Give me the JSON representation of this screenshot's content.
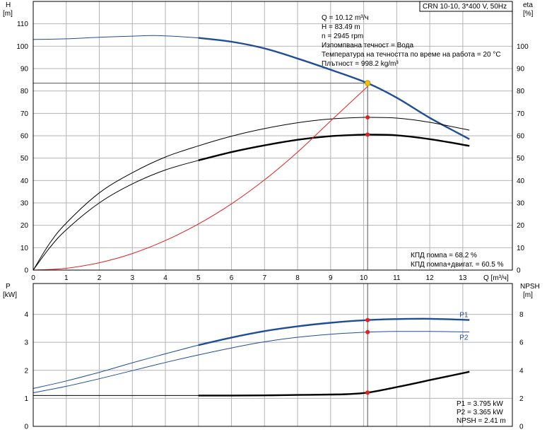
{
  "model_box": "CRN 10-10, 3*400 V, 50Hz",
  "top": {
    "left_axis": {
      "title": "H",
      "unit": "[m]",
      "ticks": [
        0,
        10,
        20,
        30,
        40,
        50,
        60,
        70,
        80,
        90,
        100,
        110
      ],
      "range": [
        0,
        120
      ]
    },
    "right_axis": {
      "title": "eta",
      "unit": "[%]",
      "ticks": [
        0,
        10,
        20,
        30,
        40,
        50,
        60,
        70,
        80,
        90,
        100
      ],
      "range": [
        0,
        120
      ]
    },
    "x_axis": {
      "unit": "Q [m³/ч]",
      "ticks": [
        0,
        1,
        2,
        3,
        4,
        5,
        6,
        7,
        8,
        9,
        10,
        11,
        12,
        13
      ],
      "range": [
        0,
        14.5
      ]
    },
    "info_lines": [
      "Q = 10.12 m³/ч",
      "H = 83.49 m",
      "n = 2945 rpm",
      "Изпомпвана течност = Вода",
      "Температура на течността по време на работа = 20 °C",
      "Плътност = 998.2 kg/m³"
    ],
    "eff_lines": [
      "КПД помпа = 68.2 %",
      "КПД помпа+двигат. = 60.5 %"
    ]
  },
  "bottom": {
    "left_axis": {
      "title": "P",
      "unit": "[kW]",
      "ticks": [
        0,
        1,
        2,
        3,
        4
      ],
      "range": [
        0,
        5.1
      ]
    },
    "right_axis": {
      "title": "NPSH",
      "unit": "[m]",
      "ticks": [
        0,
        2,
        4,
        6,
        8
      ],
      "range": [
        0,
        10.2
      ]
    },
    "result_lines": [
      "P1 = 3.795 kW",
      "P2 = 3.365 kW",
      "NPSH = 2.41 m"
    ]
  },
  "chart_data": {
    "type": "line",
    "duty_point": {
      "q": 10.12,
      "h": 83.49
    },
    "series": [
      {
        "id": "H",
        "axis": "top-left",
        "color": "#1f4e96",
        "x": [
          0,
          1,
          2,
          3,
          3.8,
          5,
          6,
          7,
          8,
          9,
          10.12,
          11,
          12,
          13.2
        ],
        "y": [
          103,
          103.3,
          104,
          104.5,
          104.7,
          103.7,
          102,
          99,
          94.5,
          89.5,
          83.49,
          77,
          68,
          58.5
        ],
        "bold_from": 5
      },
      {
        "id": "eta_pump",
        "axis": "top-right",
        "color": "#000000",
        "x": [
          0,
          0.5,
          1,
          2,
          3,
          4,
          5,
          6,
          7,
          8,
          9,
          10,
          10.2,
          11,
          12,
          13.2
        ],
        "y": [
          0,
          12,
          21,
          34.5,
          43.5,
          50.5,
          55.5,
          59.8,
          63.2,
          65.8,
          67.5,
          68.2,
          68.2,
          67.9,
          66,
          62.5
        ],
        "bold_from": 99
      },
      {
        "id": "eta_total",
        "axis": "top-right",
        "color": "#000000",
        "x": [
          0,
          0.5,
          1,
          2,
          3,
          4,
          5,
          6,
          7,
          8,
          9,
          10,
          10.2,
          11,
          12,
          13.2
        ],
        "y": [
          0,
          10,
          18,
          30,
          38.5,
          44.7,
          49,
          52.7,
          55.7,
          58.2,
          59.8,
          60.5,
          60.5,
          60.2,
          58.5,
          55.5
        ],
        "bold_from": 5
      },
      {
        "id": "system",
        "axis": "top-left",
        "color": "#e02020",
        "x": [
          0,
          1,
          2,
          3,
          4,
          5,
          6,
          7,
          8,
          9,
          10.12
        ],
        "y": [
          0,
          0.8,
          3.3,
          7.4,
          13.2,
          20.6,
          29.6,
          40.3,
          52.7,
          66.6,
          82
        ]
      },
      {
        "id": "P1",
        "axis": "bottom-left",
        "color": "#1f4e96",
        "label": "P1",
        "x": [
          0,
          1,
          2,
          3,
          4,
          5,
          6,
          7,
          8,
          9,
          10.12,
          11,
          12,
          13.2
        ],
        "y": [
          1.35,
          1.62,
          1.93,
          2.27,
          2.59,
          2.9,
          3.17,
          3.4,
          3.57,
          3.7,
          3.795,
          3.83,
          3.84,
          3.8
        ],
        "bold_from": 5
      },
      {
        "id": "P2",
        "axis": "bottom-left",
        "color": "#1f4e96",
        "label": "P2",
        "x": [
          0,
          1,
          2,
          3,
          4,
          5,
          6,
          7,
          8,
          9,
          10.12,
          11,
          12,
          13.2
        ],
        "y": [
          1.2,
          1.43,
          1.7,
          1.99,
          2.28,
          2.55,
          2.8,
          3.02,
          3.18,
          3.29,
          3.365,
          3.39,
          3.39,
          3.37
        ]
      },
      {
        "id": "NPSH",
        "axis": "bottom-right",
        "color": "#000000",
        "x": [
          0,
          5,
          6,
          7,
          8,
          9,
          9.5,
          10.12,
          11,
          12,
          13.2
        ],
        "y": [
          2.2,
          2.2,
          2.2,
          2.21,
          2.24,
          2.27,
          2.3,
          2.41,
          2.8,
          3.3,
          3.9
        ],
        "bold_from": 5
      }
    ],
    "markers": [
      {
        "axis": "top-left",
        "x": 10.12,
        "y": 83.49,
        "color": "#f2c200"
      },
      {
        "axis": "top-right",
        "x": 10.12,
        "y": 68.2,
        "color": "#e02020"
      },
      {
        "axis": "top-right",
        "x": 10.12,
        "y": 60.5,
        "color": "#e02020"
      },
      {
        "axis": "bottom-left",
        "x": 10.12,
        "y": 3.795,
        "color": "#e02020"
      },
      {
        "axis": "bottom-left",
        "x": 10.12,
        "y": 3.365,
        "color": "#e02020"
      },
      {
        "axis": "bottom-right",
        "x": 10.12,
        "y": 2.41,
        "color": "#e02020"
      }
    ]
  }
}
